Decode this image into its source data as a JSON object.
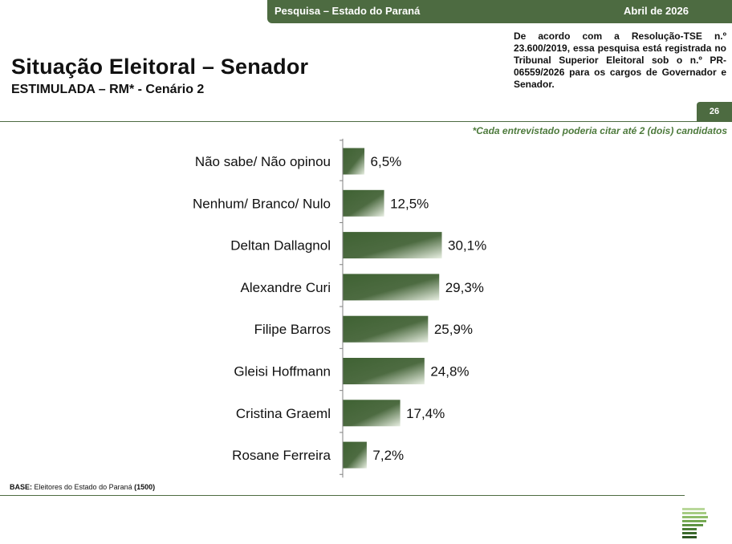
{
  "header": {
    "survey_label": "Pesquisa – Estado do Paraná",
    "date_label": "Abril de 2026",
    "notice": "De acordo com a Resolução-TSE n.º 23.600/2019, essa pesquisa está registrada no Tribunal Superior Eleitoral sob o n.º PR-06559/2026 para os cargos de Governador e Senador.",
    "page_number": "26"
  },
  "title": "Situação Eleitoral – Senador",
  "subtitle": "ESTIMULADA – RM* - Cenário 2",
  "footnote": "*Cada entrevistado poderia citar até 2 (dois) candidatos",
  "base": {
    "label": "BASE:",
    "text": " Eleitores do Estado do Paraná ",
    "count": "(1500)"
  },
  "colors": {
    "brand_green": "#4d6b41",
    "bar_dark": "#3f6233",
    "bar_light": "#e8efe2"
  },
  "chart_data": {
    "type": "bar",
    "orientation": "horizontal",
    "categories": [
      "Não sabe/ Não opinou",
      "Nenhum/ Branco/ Nulo",
      "Deltan Dallagnol",
      "Alexandre Curi",
      "Filipe Barros",
      "Gleisi Hoffmann",
      "Cristina Graeml",
      "Rosane Ferreira"
    ],
    "values": [
      6.5,
      12.5,
      30.1,
      29.3,
      25.9,
      24.8,
      17.4,
      7.2
    ],
    "value_labels": [
      "6,5%",
      "12,5%",
      "30,1%",
      "29,3%",
      "25,9%",
      "24,8%",
      "17,4%",
      "7,2%"
    ],
    "unit": "%",
    "xlim": [
      0,
      30.1
    ]
  }
}
